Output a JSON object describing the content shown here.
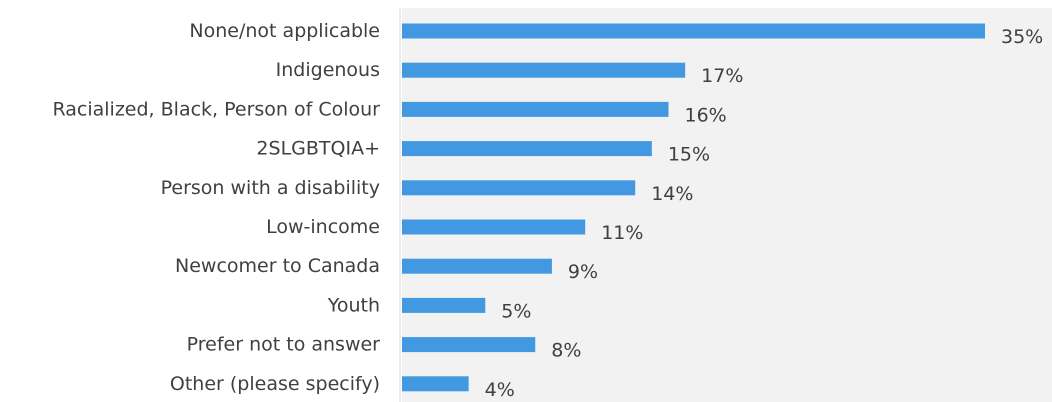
{
  "chart_data": {
    "type": "bar",
    "orientation": "horizontal",
    "categories": [
      "None/not applicable",
      "Indigenous",
      "Racialized, Black, Person of Colour",
      "2SLGBTQIA+",
      "Person with a disability",
      "Low-income",
      "Newcomer to Canada",
      "Youth",
      "Prefer not to answer",
      "Other (please specify)"
    ],
    "values": [
      35,
      17,
      16,
      15,
      14,
      11,
      9,
      5,
      8,
      4
    ],
    "value_labels": [
      "35%",
      "17%",
      "16%",
      "15%",
      "14%",
      "11%",
      "9%",
      "5%",
      "8%",
      "4%"
    ],
    "unit": "%",
    "xlim": [
      0,
      35
    ],
    "grid": false,
    "bar_color": "#4299e1",
    "plot_background": "#f2f2f2",
    "text_color": "#404040"
  }
}
